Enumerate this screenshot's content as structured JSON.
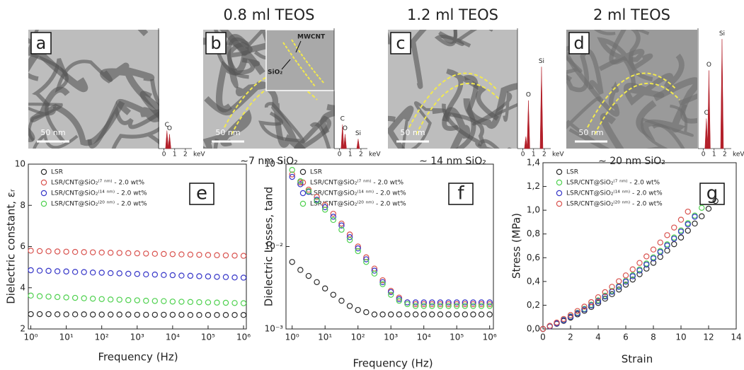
{
  "panels": [
    {
      "letter": "a",
      "scale_bar": "50 nm",
      "spectrum": {
        "xlim": [
          -0.5,
          2.6
        ],
        "xticks": [
          0,
          1,
          2
        ],
        "unit": "keV",
        "ylim": [
          0,
          100
        ],
        "peaks": [
          {
            "label": "C",
            "energy": 0.28,
            "height": 15
          },
          {
            "label": "O",
            "energy": 0.52,
            "height": 12
          }
        ]
      }
    },
    {
      "letter": "b",
      "title": "0.8 ml TEOS",
      "caption": "∼7 nm SiO₂",
      "scale_bar": "50 nm",
      "inset_labels": [
        "MWCNT",
        "SiO₂"
      ],
      "spectrum": {
        "xlim": [
          -0.5,
          2.6
        ],
        "xticks": [
          0,
          1,
          2
        ],
        "unit": "keV",
        "ylim": [
          0,
          100
        ],
        "peaks": [
          {
            "label": "C",
            "energy": 0.28,
            "height": 20
          },
          {
            "label": "O",
            "energy": 0.52,
            "height": 12
          },
          {
            "label": "Si",
            "energy": 1.74,
            "height": 8
          }
        ]
      }
    },
    {
      "letter": "c",
      "title": "1.2 ml TEOS",
      "caption": "∼ 14 nm SiO₂",
      "scale_bar": "50 nm",
      "spectrum": {
        "xlim": [
          -0.5,
          2.6
        ],
        "xticks": [
          0,
          1,
          2
        ],
        "unit": "keV",
        "ylim": [
          0,
          100
        ],
        "peaks": [
          {
            "label": null,
            "energy": 0.28,
            "height": 10
          },
          {
            "label": "O",
            "energy": 0.52,
            "height": 40
          },
          {
            "label": "Si",
            "energy": 1.74,
            "height": 68
          }
        ]
      }
    },
    {
      "letter": "d",
      "title": "2 ml TEOS",
      "caption": "∼ 20 nm SiO₂",
      "scale_bar": "50 nm",
      "spectrum": {
        "xlim": [
          -0.5,
          2.6
        ],
        "xticks": [
          0,
          1,
          2
        ],
        "unit": "keV",
        "ylim": [
          0,
          100
        ],
        "peaks": [
          {
            "label": "C",
            "energy": 0.28,
            "height": 25
          },
          {
            "label": "O",
            "energy": 0.52,
            "height": 65
          },
          {
            "label": "Si",
            "energy": 1.74,
            "height": 91
          }
        ]
      }
    }
  ],
  "chart_data": [
    {
      "type": "scatter",
      "panel": "e",
      "x_label": "Frequency (Hz)",
      "y_label": "Dielectric constant, εᵣ",
      "xscale": "log",
      "xlim": [
        0.85,
        1200000
      ],
      "ylim": [
        2,
        10
      ],
      "xticks": [
        {
          "value": 1,
          "label": "10⁰"
        },
        {
          "value": 10,
          "label": "10¹"
        },
        {
          "value": 100,
          "label": "10²"
        },
        {
          "value": 1000,
          "label": "10³"
        },
        {
          "value": 10000,
          "label": "10⁴"
        },
        {
          "value": 100000,
          "label": "10⁵"
        },
        {
          "value": 1000000,
          "label": "10⁶"
        }
      ],
      "yticks": [
        2,
        4,
        6,
        8,
        10
      ],
      "x": [
        1,
        1.778,
        3.162,
        5.623,
        10,
        17.78,
        31.62,
        56.23,
        100,
        177.8,
        316.2,
        562.3,
        1000,
        1778,
        3162,
        5623,
        10000,
        17783,
        31623,
        56234,
        100000,
        177828,
        316228,
        562341,
        1000000
      ],
      "series": [
        {
          "name": "LSR",
          "color": "#2b2b2b",
          "values": [
            2.72,
            2.72,
            2.72,
            2.71,
            2.71,
            2.71,
            2.71,
            2.7,
            2.7,
            2.7,
            2.7,
            2.7,
            2.69,
            2.69,
            2.69,
            2.69,
            2.69,
            2.69,
            2.68,
            2.68,
            2.68,
            2.68,
            2.68,
            2.68,
            2.68
          ]
        },
        {
          "name": "LSR/CNT@SiO₂⁽⁷ ⁿᵐ⁾ - 2.0 wt%",
          "color": "#d9534f",
          "values": [
            5.8,
            5.78,
            5.77,
            5.76,
            5.75,
            5.74,
            5.73,
            5.72,
            5.71,
            5.7,
            5.69,
            5.68,
            5.67,
            5.66,
            5.65,
            5.64,
            5.63,
            5.62,
            5.61,
            5.6,
            5.59,
            5.58,
            5.57,
            5.56,
            5.55
          ]
        },
        {
          "name": "LSR/CNT@SiO₂⁽¹⁴ ⁿᵐ⁾ - 2.0 wt%",
          "color": "#3636c8",
          "values": [
            4.85,
            4.83,
            4.82,
            4.8,
            4.79,
            4.77,
            4.76,
            4.74,
            4.73,
            4.71,
            4.7,
            4.68,
            4.67,
            4.65,
            4.64,
            4.62,
            4.61,
            4.59,
            4.58,
            4.56,
            4.55,
            4.53,
            4.52,
            4.5,
            4.49
          ]
        },
        {
          "name": "LSR/CNT@SiO₂⁽²⁰ ⁿᵐ⁾ - 2.0 wt%",
          "color": "#4fd14f",
          "values": [
            3.62,
            3.59,
            3.57,
            3.55,
            3.53,
            3.51,
            3.49,
            3.47,
            3.45,
            3.43,
            3.42,
            3.4,
            3.39,
            3.37,
            3.36,
            3.35,
            3.33,
            3.32,
            3.31,
            3.3,
            3.29,
            3.28,
            3.27,
            3.26,
            3.25
          ]
        }
      ]
    },
    {
      "type": "scatter",
      "panel": "f",
      "x_label": "Frequency (Hz)",
      "y_label": "Dielectric Losses, tand",
      "xscale": "log",
      "yscale": "log",
      "xlim": [
        0.65,
        1300000
      ],
      "ylim": [
        0.001,
        0.1
      ],
      "xticks": [
        {
          "value": 1,
          "label": "10⁰"
        },
        {
          "value": 10,
          "label": "10¹"
        },
        {
          "value": 100,
          "label": "10²"
        },
        {
          "value": 1000,
          "label": "10³"
        },
        {
          "value": 10000,
          "label": "10⁴"
        },
        {
          "value": 100000,
          "label": "10⁵"
        },
        {
          "value": 1000000,
          "label": "10⁶"
        }
      ],
      "yticks": [
        {
          "value": 0.001,
          "label": "10⁻³"
        },
        {
          "value": 0.01,
          "label": "10⁻²"
        },
        {
          "value": 0.1,
          "label": "10⁻¹"
        }
      ],
      "x": [
        1,
        1.778,
        3.162,
        5.623,
        10,
        17.78,
        31.62,
        56.23,
        100,
        177.8,
        316.2,
        562.3,
        1000,
        1778,
        3162,
        5623,
        10000,
        17783,
        31623,
        56234,
        100000,
        177828,
        316228,
        562341,
        1000000
      ],
      "series": [
        {
          "name": "LSR",
          "color": "#2b2b2b",
          "values": [
            0.0065,
            0.0052,
            0.0044,
            0.0037,
            0.0031,
            0.0026,
            0.0022,
            0.0019,
            0.0017,
            0.0016,
            0.0015,
            0.0015,
            0.0015,
            0.0015,
            0.0015,
            0.0015,
            0.0015,
            0.0015,
            0.0015,
            0.0015,
            0.0015,
            0.0015,
            0.0015,
            0.0015,
            0.0015
          ]
        },
        {
          "name": "LSR/CNT@SiO₂⁽⁷ ⁿᵐ⁾ - 2.0 wt%",
          "color": "#d9534f",
          "values": [
            0.075,
            0.06,
            0.049,
            0.04,
            0.032,
            0.025,
            0.019,
            0.014,
            0.01,
            0.0074,
            0.0054,
            0.0039,
            0.0029,
            0.0024,
            0.0021,
            0.002,
            0.002,
            0.002,
            0.002,
            0.002,
            0.002,
            0.002,
            0.002,
            0.002,
            0.002
          ]
        },
        {
          "name": "LSR/CNT@SiO₂⁽¹⁴ ⁿᵐ⁾ - 2.0 wt%",
          "color": "#3636c8",
          "values": [
            0.07,
            0.057,
            0.046,
            0.037,
            0.03,
            0.023,
            0.018,
            0.013,
            0.0095,
            0.007,
            0.0051,
            0.0037,
            0.0028,
            0.0023,
            0.0021,
            0.0021,
            0.0021,
            0.0021,
            0.0021,
            0.0021,
            0.0021,
            0.0021,
            0.0021,
            0.0021,
            0.0021
          ]
        },
        {
          "name": "LSR/CNT@SiO₂⁽²⁰ ⁿᵐ⁾ - 2.0 wt%",
          "color": "#4fd14f",
          "values": [
            0.085,
            0.062,
            0.047,
            0.036,
            0.028,
            0.021,
            0.016,
            0.012,
            0.0088,
            0.0065,
            0.0047,
            0.0035,
            0.0026,
            0.0022,
            0.002,
            0.0019,
            0.0019,
            0.0019,
            0.0019,
            0.0019,
            0.0019,
            0.0019,
            0.0019,
            0.0019,
            0.0019
          ]
        }
      ]
    },
    {
      "type": "scatter",
      "panel": "g",
      "x_label": "Strain",
      "y_label": "Stress (MPa)",
      "xlim": [
        0,
        14
      ],
      "ylim": [
        0,
        1.4
      ],
      "xticks": [
        0,
        2,
        4,
        6,
        8,
        10,
        12,
        14
      ],
      "yticks": [
        {
          "value": 0,
          "label": "0,0"
        },
        {
          "value": 0.2,
          "label": "0,2"
        },
        {
          "value": 0.4,
          "label": "0,4"
        },
        {
          "value": 0.6,
          "label": "0,6"
        },
        {
          "value": 0.8,
          "label": "0,8"
        },
        {
          "value": 1.0,
          "label": "1,0"
        },
        {
          "value": 1.2,
          "label": "1,2"
        },
        {
          "value": 1.4,
          "label": "1,4"
        }
      ],
      "series": [
        {
          "name": "LSR",
          "color": "#2b2b2b",
          "x": [
            0,
            0.5,
            1,
            1.5,
            2,
            2.5,
            3,
            3.5,
            4,
            4.5,
            5,
            5.5,
            6,
            6.5,
            7,
            7.5,
            8,
            8.5,
            9,
            9.5,
            10,
            10.5,
            11,
            11.5,
            12,
            12.5
          ],
          "values": [
            0,
            0.021,
            0.044,
            0.068,
            0.095,
            0.123,
            0.153,
            0.185,
            0.219,
            0.255,
            0.293,
            0.332,
            0.373,
            0.416,
            0.461,
            0.508,
            0.557,
            0.607,
            0.66,
            0.714,
            0.77,
            0.828,
            0.888,
            0.949,
            1.013,
            1.078
          ]
        },
        {
          "name": "LSR/CNT@SiO₂⁽⁷ ⁿᵐ⁾ - 2.0 wt%",
          "color": "#4fd14f",
          "x": [
            0,
            0.5,
            1,
            1.5,
            2,
            2.5,
            3,
            3.5,
            4,
            4.5,
            5,
            5.5,
            6,
            6.5,
            7,
            7.5,
            8,
            8.5,
            9,
            9.5,
            10,
            10.5,
            11,
            11.5
          ],
          "values": [
            0,
            0.023,
            0.049,
            0.076,
            0.105,
            0.136,
            0.169,
            0.204,
            0.241,
            0.28,
            0.32,
            0.362,
            0.407,
            0.453,
            0.501,
            0.551,
            0.603,
            0.657,
            0.713,
            0.77,
            0.83,
            0.891,
            0.955,
            1.02
          ]
        },
        {
          "name": "LSR/CNT@SiO₂⁽¹⁴ ⁿᵐ⁾ - 2.0 wt%",
          "color": "#3636c8",
          "x": [
            0,
            0.5,
            1,
            1.5,
            2,
            2.5,
            3,
            3.5,
            4,
            4.5,
            5,
            5.5,
            6,
            6.5,
            7,
            7.5,
            8,
            8.5,
            9,
            9.5,
            10,
            10.5,
            11
          ],
          "values": [
            0,
            0.022,
            0.047,
            0.073,
            0.102,
            0.132,
            0.164,
            0.198,
            0.234,
            0.273,
            0.313,
            0.354,
            0.398,
            0.444,
            0.492,
            0.542,
            0.594,
            0.648,
            0.703,
            0.76,
            0.82,
            0.881,
            0.945
          ]
        },
        {
          "name": "LSR/CNT@SiO₂⁽²⁰ ⁿᵐ⁾ - 2.0 wt%",
          "color": "#d9534f",
          "x": [
            0,
            0.5,
            1,
            1.5,
            2,
            2.5,
            3,
            3.5,
            4,
            4.5,
            5,
            5.5,
            6,
            6.5,
            7,
            7.5,
            8,
            8.5,
            9,
            9.5,
            10,
            10.5
          ],
          "values": [
            0,
            0.026,
            0.054,
            0.084,
            0.117,
            0.151,
            0.188,
            0.226,
            0.267,
            0.31,
            0.355,
            0.402,
            0.451,
            0.502,
            0.556,
            0.611,
            0.669,
            0.728,
            0.79,
            0.854,
            0.92,
            0.988
          ]
        }
      ]
    }
  ]
}
